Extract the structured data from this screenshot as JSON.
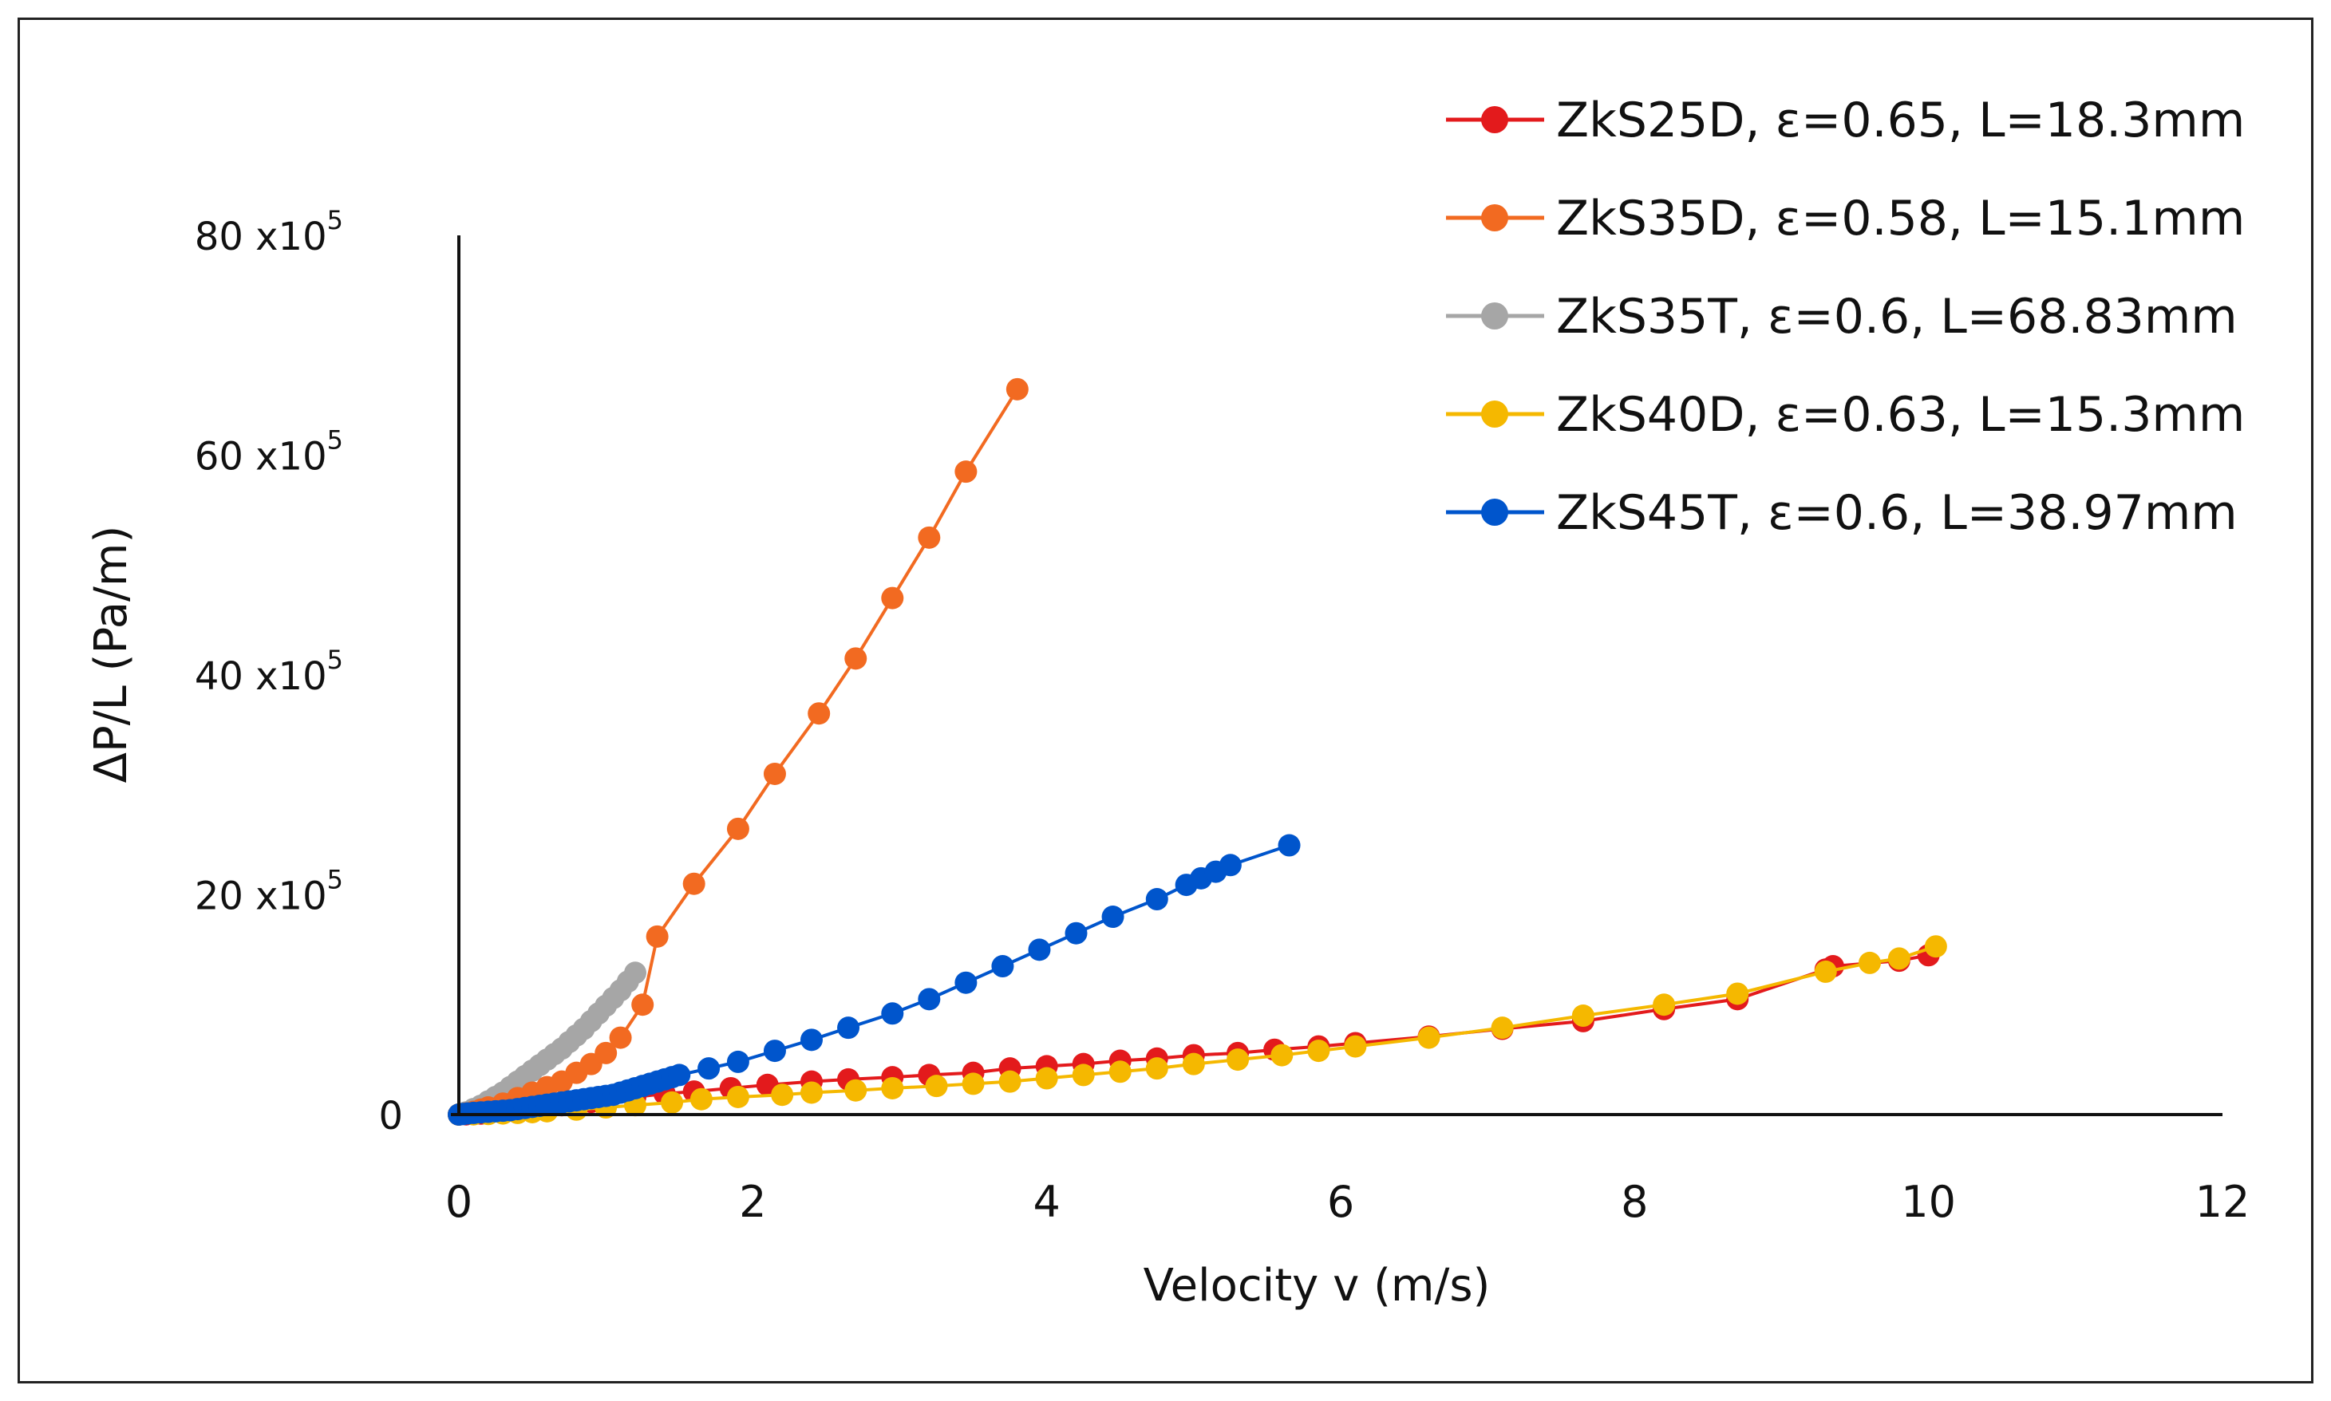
{
  "chart_data": {
    "type": "line",
    "title": "",
    "xlabel": "Velocity v (m/s)",
    "ylabel": "ΔP/L (Pa/m)",
    "xlim": [
      0,
      12
    ],
    "ylim": [
      0,
      8000000
    ],
    "x_ticks": [
      "0",
      "2",
      "4",
      "6",
      "8",
      "10",
      "12"
    ],
    "y_ticks": [
      {
        "value": 0,
        "base": "0",
        "exp": ""
      },
      {
        "value": 2000000,
        "base": "20 x10",
        "exp": "5"
      },
      {
        "value": 4000000,
        "base": "40 x10",
        "exp": "5"
      },
      {
        "value": 6000000,
        "base": "60 x10",
        "exp": "5"
      },
      {
        "value": 8000000,
        "base": "80 x10",
        "exp": "5"
      }
    ],
    "grid": false,
    "legend_position": "top-right",
    "series": [
      {
        "name": "ZkS25D, ε=0.65, L=18.3mm",
        "color": "#e31a1c",
        "x": [
          0,
          0.05,
          0.1,
          0.15,
          0.2,
          0.3,
          0.4,
          0.5,
          0.6,
          0.7,
          0.8,
          0.9,
          1.0,
          1.2,
          1.4,
          1.6,
          1.85,
          2.1,
          2.4,
          2.65,
          2.95,
          3.2,
          3.5,
          3.75,
          4.0,
          4.25,
          4.5,
          4.75,
          5.0,
          5.3,
          5.55,
          5.85,
          6.1,
          6.6,
          7.1,
          7.65,
          8.2,
          8.7,
          9.3,
          9.35,
          9.8,
          10.0
        ],
        "y": [
          0,
          2000,
          5000,
          9000,
          15000,
          28000,
          40000,
          55000,
          70000,
          85000,
          100000,
          115000,
          130000,
          160000,
          190000,
          210000,
          240000,
          270000,
          300000,
          320000,
          340000,
          360000,
          380000,
          420000,
          440000,
          460000,
          490000,
          510000,
          540000,
          560000,
          590000,
          620000,
          650000,
          710000,
          780000,
          850000,
          960000,
          1050000,
          1320000,
          1350000,
          1400000,
          1450000
        ]
      },
      {
        "name": "ZkS35D, ε=0.58, L=15.1mm",
        "color": "#f26a21",
        "x": [
          0,
          0.05,
          0.1,
          0.15,
          0.2,
          0.3,
          0.4,
          0.5,
          0.6,
          0.7,
          0.8,
          0.9,
          1.0,
          1.1,
          1.25,
          1.35,
          1.6,
          1.9,
          2.15,
          2.45,
          2.7,
          2.95,
          3.2,
          3.45,
          3.8
        ],
        "y": [
          0,
          10000,
          25000,
          45000,
          65000,
          100000,
          150000,
          200000,
          250000,
          300000,
          380000,
          460000,
          560000,
          700000,
          1000000,
          1620000,
          2100000,
          2600000,
          3100000,
          3650000,
          4150000,
          4700000,
          5250000,
          5850000,
          6600000
        ]
      },
      {
        "name": "ZkS35T, ε=0.6, L=68.83mm",
        "color": "#a6a6a6",
        "x": [
          0,
          0.05,
          0.1,
          0.15,
          0.2,
          0.25,
          0.3,
          0.35,
          0.4,
          0.45,
          0.5,
          0.55,
          0.6,
          0.65,
          0.7,
          0.75,
          0.8,
          0.85,
          0.9,
          0.95,
          1.0,
          1.05,
          1.1,
          1.15,
          1.2
        ],
        "y": [
          0,
          20000,
          50000,
          80000,
          120000,
          160000,
          200000,
          250000,
          300000,
          350000,
          400000,
          450000,
          500000,
          550000,
          600000,
          660000,
          720000,
          780000,
          850000,
          920000,
          990000,
          1060000,
          1130000,
          1210000,
          1290000
        ]
      },
      {
        "name": "ZkS40D, ε=0.63, L=15.3mm",
        "color": "#f5b800",
        "x": [
          0,
          0.1,
          0.2,
          0.3,
          0.4,
          0.5,
          0.6,
          0.8,
          1.0,
          1.2,
          1.45,
          1.65,
          1.9,
          2.2,
          2.4,
          2.7,
          2.95,
          3.25,
          3.5,
          3.75,
          4.0,
          4.25,
          4.5,
          4.75,
          5.0,
          5.3,
          5.6,
          5.85,
          6.1,
          6.6,
          7.1,
          7.65,
          8.2,
          8.7,
          9.3,
          9.6,
          9.8,
          10.05
        ],
        "y": [
          0,
          2000,
          5000,
          10000,
          15000,
          22000,
          30000,
          45000,
          65000,
          85000,
          110000,
          140000,
          160000,
          180000,
          200000,
          220000,
          240000,
          260000,
          280000,
          300000,
          330000,
          360000,
          390000,
          420000,
          460000,
          500000,
          540000,
          580000,
          620000,
          700000,
          790000,
          900000,
          1000000,
          1100000,
          1300000,
          1380000,
          1420000,
          1530000
        ]
      },
      {
        "name": "ZkS45T, ε=0.6, L=38.97mm",
        "color": "#0055cc",
        "x": [
          0,
          0.03,
          0.06,
          0.1,
          0.15,
          0.2,
          0.25,
          0.3,
          0.35,
          0.4,
          0.45,
          0.5,
          0.55,
          0.6,
          0.65,
          0.7,
          0.75,
          0.8,
          0.85,
          0.9,
          0.95,
          1.0,
          1.05,
          1.1,
          1.15,
          1.2,
          1.25,
          1.3,
          1.35,
          1.4,
          1.45,
          1.5,
          1.7,
          1.9,
          2.15,
          2.4,
          2.65,
          2.95,
          3.2,
          3.45,
          3.7,
          3.95,
          4.2,
          4.45,
          4.75,
          4.95,
          5.05,
          5.15,
          5.25,
          5.65
        ],
        "y": [
          0,
          5000,
          10000,
          15000,
          20000,
          25000,
          30000,
          35000,
          40000,
          50000,
          60000,
          70000,
          80000,
          90000,
          100000,
          110000,
          120000,
          130000,
          140000,
          150000,
          160000,
          170000,
          180000,
          200000,
          220000,
          240000,
          260000,
          280000,
          300000,
          320000,
          340000,
          360000,
          420000,
          480000,
          580000,
          680000,
          790000,
          920000,
          1050000,
          1200000,
          1350000,
          1500000,
          1650000,
          1800000,
          1960000,
          2090000,
          2150000,
          2210000,
          2270000,
          2450000
        ]
      }
    ]
  }
}
